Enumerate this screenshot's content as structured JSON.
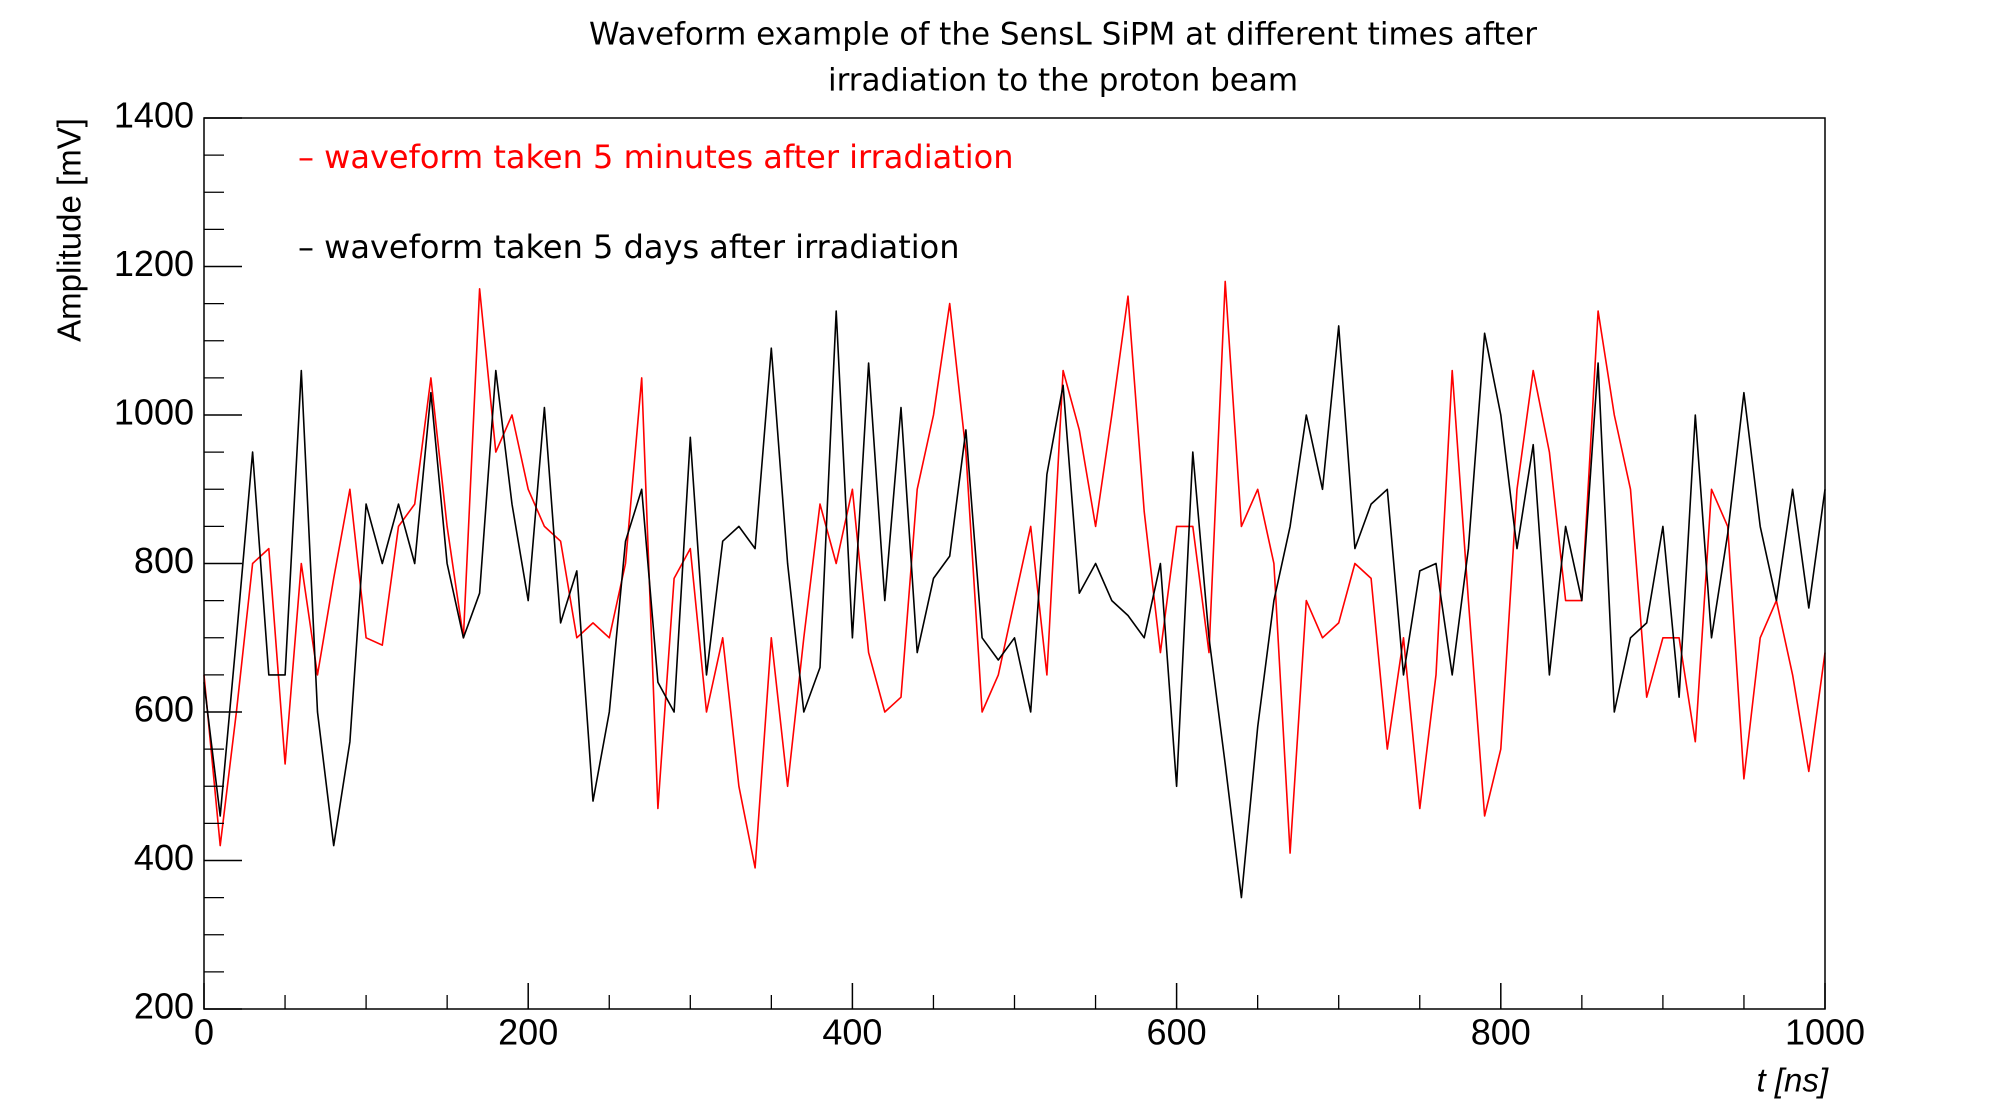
{
  "chart_data": {
    "type": "line",
    "title": [
      "Waveform example of the SensL SiPM at different times after",
      "irradiation to the proton beam"
    ],
    "xlabel": "t [ns]",
    "ylabel": "Amplitude [mV]",
    "x": [
      0,
      10,
      20,
      30,
      40,
      50,
      60,
      70,
      80,
      90,
      100,
      110,
      120,
      130,
      140,
      150,
      160,
      170,
      180,
      190,
      200,
      210,
      220,
      230,
      240,
      250,
      260,
      270,
      280,
      290,
      300,
      310,
      320,
      330,
      340,
      350,
      360,
      370,
      380,
      390,
      400,
      410,
      420,
      430,
      440,
      450,
      460,
      470,
      480,
      490,
      500,
      510,
      520,
      530,
      540,
      550,
      560,
      570,
      580,
      590,
      600,
      610,
      620,
      630,
      640,
      650,
      660,
      670,
      680,
      690,
      700,
      710,
      720,
      730,
      740,
      750,
      760,
      770,
      780,
      790,
      800,
      810,
      820,
      830,
      840,
      850,
      860,
      870,
      880,
      890,
      900,
      910,
      920,
      930,
      940,
      950,
      960,
      970,
      980,
      990,
      1000
    ],
    "series": [
      {
        "name": "– waveform taken 5 minutes after irradiation",
        "color": "#ff0000",
        "values": [
          650,
          420,
          600,
          800,
          820,
          530,
          800,
          650,
          780,
          900,
          700,
          690,
          850,
          880,
          1050,
          850,
          700,
          1170,
          950,
          1000,
          900,
          850,
          830,
          700,
          720,
          700,
          800,
          1050,
          470,
          780,
          820,
          600,
          700,
          500,
          390,
          700,
          500,
          700,
          880,
          800,
          900,
          680,
          600,
          620,
          900,
          1000,
          1150,
          950,
          600,
          650,
          750,
          850,
          650,
          1060,
          980,
          850,
          1000,
          1160,
          870,
          680,
          850,
          850,
          680,
          1180,
          850,
          900,
          800,
          410,
          750,
          700,
          720,
          800,
          780,
          550,
          700,
          470,
          650,
          1060,
          750,
          460,
          550,
          900,
          1060,
          950,
          750,
          750,
          1140,
          1000,
          900,
          620,
          700,
          700,
          560,
          900,
          850,
          510,
          700,
          750,
          650,
          520,
          680
        ]
      },
      {
        "name": "– waveform taken 5 days after irradiation",
        "color": "#000000",
        "values": [
          640,
          460,
          700,
          950,
          650,
          650,
          1060,
          600,
          420,
          560,
          880,
          800,
          880,
          800,
          1030,
          800,
          700,
          760,
          1060,
          880,
          750,
          1010,
          720,
          790,
          480,
          600,
          830,
          900,
          640,
          600,
          970,
          650,
          830,
          850,
          820,
          1090,
          800,
          600,
          660,
          1140,
          700,
          1070,
          750,
          1010,
          680,
          780,
          810,
          980,
          700,
          670,
          700,
          600,
          920,
          1040,
          760,
          800,
          750,
          730,
          700,
          800,
          500,
          950,
          700,
          530,
          350,
          580,
          750,
          850,
          1000,
          900,
          1120,
          820,
          880,
          900,
          650,
          790,
          800,
          650,
          820,
          1110,
          1000,
          820,
          960,
          650,
          850,
          750,
          1070,
          600,
          700,
          720,
          850,
          620,
          1000,
          700,
          840,
          1030,
          850,
          750,
          900,
          740,
          900
        ]
      }
    ],
    "xlim": [
      0,
      1000
    ],
    "xticks": [
      0,
      200,
      400,
      600,
      800,
      1000
    ],
    "ylim": [
      200,
      1400
    ],
    "yticks": [
      200,
      400,
      600,
      800,
      1000,
      1200,
      1400
    ],
    "grid": false
  }
}
